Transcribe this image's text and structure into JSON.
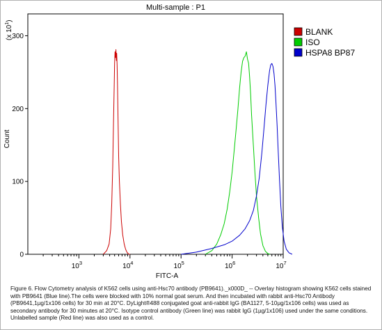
{
  "chart_data": {
    "type": "line",
    "title": "Multi-sample : P1",
    "xlabel": "FITC-A",
    "ylabel": "Count",
    "y_multiplier_label": "(x 10",
    "y_multiplier_exp": "1",
    "y_multiplier_close": ")",
    "x_scale": "log",
    "xlim": [
      100,
      10000000
    ],
    "ylim": [
      0,
      330
    ],
    "x_ticks": [
      {
        "value": 1000,
        "base": "10",
        "exp": "3"
      },
      {
        "value": 10000,
        "base": "10",
        "exp": "4"
      },
      {
        "value": 100000,
        "base": "10",
        "exp": "5"
      },
      {
        "value": 1000000,
        "base": "10",
        "exp": "6"
      },
      {
        "value": 10000000,
        "base": "10",
        "exp": "7"
      }
    ],
    "y_ticks": [
      {
        "value": 0,
        "label": "0"
      },
      {
        "value": 100,
        "label": "100"
      },
      {
        "value": 200,
        "label": "200"
      },
      {
        "value": 300,
        "label": "300"
      }
    ],
    "grid": false,
    "legend_position": "right",
    "series": [
      {
        "name": "BLANK",
        "color": "#cc0000",
        "x": [
          3000,
          3500,
          3900,
          4200,
          4400,
          4600,
          4750,
          4900,
          5000,
          5100,
          5200,
          5300,
          5400,
          5500,
          5600,
          5700,
          5800,
          5900,
          6000,
          6200,
          6500,
          6800,
          7200,
          7700,
          8200,
          8700,
          9200,
          9600,
          10000
        ],
        "y": [
          0,
          5,
          14,
          35,
          70,
          120,
          180,
          230,
          262,
          278,
          270,
          281,
          266,
          276,
          260,
          232,
          200,
          165,
          135,
          100,
          68,
          45,
          27,
          14,
          7,
          3,
          1,
          0,
          0
        ]
      },
      {
        "name": "ISO",
        "color": "#00cc00",
        "x": [
          300000,
          400000,
          500000,
          600000,
          700000,
          800000,
          900000,
          1000000,
          1100000,
          1200000,
          1300000,
          1400000,
          1500000,
          1600000,
          1700000,
          1800000,
          1900000,
          2000000,
          2100000,
          2200000,
          2300000,
          2400000,
          2600000,
          2800000,
          3000000,
          3300000,
          3600000,
          4000000,
          4500000,
          5000000,
          5500000
        ],
        "y": [
          0,
          5,
          14,
          27,
          42,
          62,
          86,
          113,
          143,
          172,
          200,
          228,
          250,
          265,
          270,
          272,
          278,
          268,
          262,
          244,
          220,
          192,
          150,
          112,
          80,
          50,
          28,
          12,
          4,
          1,
          0
        ]
      },
      {
        "name": "HSPA8 BP87",
        "color": "#0000cc",
        "x": [
          100000,
          200000,
          400000,
          700000,
          1000000,
          1400000,
          1800000,
          2200000,
          2600000,
          3000000,
          3400000,
          3800000,
          4200000,
          4600000,
          5000000,
          5400000,
          5700000,
          6000000,
          6300000,
          6600000,
          6900000,
          7200000,
          7600000,
          8000000,
          8500000,
          9000000,
          9600000,
          10400000,
          11500000,
          13000000,
          15000000
        ],
        "y": [
          0,
          3,
          8,
          13,
          18,
          26,
          35,
          46,
          60,
          80,
          105,
          138,
          172,
          205,
          232,
          252,
          260,
          262,
          258,
          248,
          232,
          210,
          176,
          140,
          100,
          66,
          38,
          18,
          7,
          2,
          0
        ]
      }
    ]
  },
  "caption": "Figure 6. Flow Cytometry analysis of K562 cells using anti-Hsc70 antibody (PB9641)._x000D_ -- Overlay histogram showing K562 cells stained with PB9641 (Blue line).The cells were blocked with 10% normal goat serum. And then incubated with rabbit anti-Hsc70 Antibody (PB9641,1µg/1x106 cells) for 30 min at 20°C. DyLight®488 conjugated goat anti-rabbit IgG (BA1127, 5-10µg/1x106 cells) was used as secondary antibody for 30 minutes at 20°C. Isotype control antibody (Green line) was rabbit IgG (1µg/1x106) used under the same conditions. Unlabelled sample (Red line) was also used as a control."
}
